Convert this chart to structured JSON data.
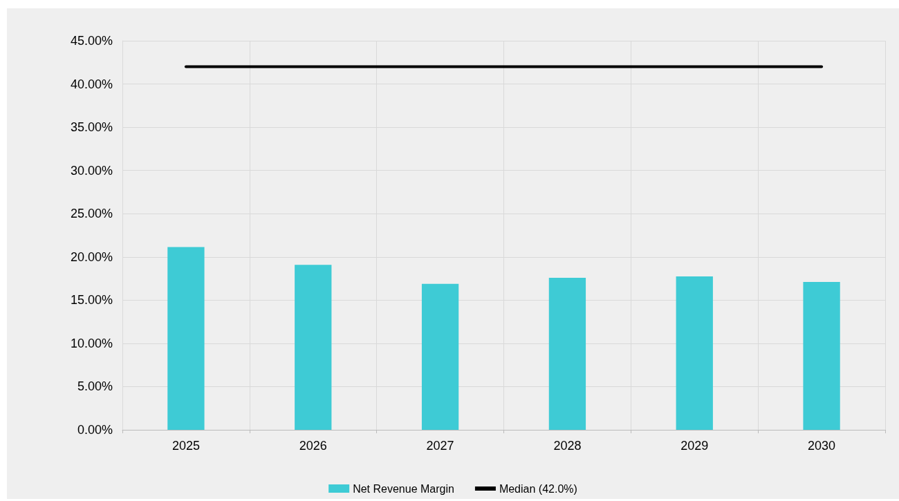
{
  "chart_data": {
    "type": "bar",
    "categories": [
      "2025",
      "2026",
      "2027",
      "2028",
      "2029",
      "2030"
    ],
    "series": [
      {
        "name": "Net Revenue Margin",
        "color": "#3ecbd5",
        "values": [
          21.15,
          19.08,
          16.88,
          17.58,
          17.75,
          17.11
        ]
      },
      {
        "name": "Median (42.0%)",
        "type": "line",
        "color": "#000000",
        "values": [
          42,
          42,
          42,
          42,
          42,
          42
        ],
        "marker": "none"
      }
    ],
    "ylim": [
      0,
      45
    ],
    "yticks": [
      {
        "value": 0,
        "label": "0.00%"
      },
      {
        "value": 5,
        "label": "5.00%"
      },
      {
        "value": 10,
        "label": "10.00%"
      },
      {
        "value": 15,
        "label": "15.00%"
      },
      {
        "value": 20,
        "label": "20.00%"
      },
      {
        "value": 25,
        "label": "25.00%"
      },
      {
        "value": 30,
        "label": "30.00%"
      },
      {
        "value": 35,
        "label": "35.00%"
      },
      {
        "value": 40,
        "label": "40.00%"
      },
      {
        "value": 45,
        "label": "45.00%"
      }
    ],
    "grid": true,
    "legend": "bottom"
  }
}
